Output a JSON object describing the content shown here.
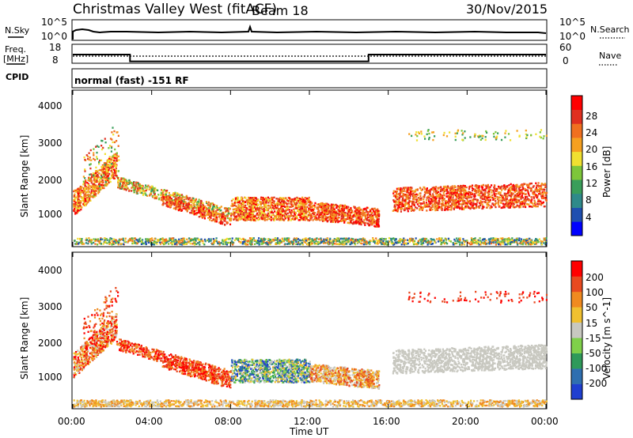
{
  "header": {
    "title": "Christmas Valley West (fitACF)",
    "beam": "Beam 18",
    "date": "30/Nov/2015"
  },
  "status_panel": {
    "nsky_label": "N.Sky",
    "nsearch_label": "N.Search",
    "freq_label_1": "Freq.",
    "freq_label_2": "[MHz]",
    "nave_label": "Nave",
    "cpid_label": "CPID",
    "cpid_text": "normal (fast) -151 RF",
    "nsky_ticks": [
      "10^5",
      "10^0"
    ],
    "nsearch_ticks": [
      "10^5",
      "10^0"
    ],
    "freq_ticks": [
      "18",
      "8"
    ],
    "nave_ticks": [
      "60",
      "0"
    ]
  },
  "chart_data": [
    {
      "type": "heatmap",
      "name": "power",
      "ylabel": "Slant Range [km]",
      "y_ticks": [
        "4000",
        "3000",
        "2000",
        "1000"
      ],
      "y_values": [
        4000,
        3000,
        2000,
        1000
      ],
      "ylim": [
        200,
        4500
      ],
      "xlim": [
        0,
        24
      ],
      "colorbar_label": "Power [dB]",
      "colorbar_ticks": [
        "28",
        "24",
        "20",
        "16",
        "12",
        "8",
        "4"
      ],
      "colorbar_colors": [
        "#0000ff",
        "#1f4fb0",
        "#2f8a8a",
        "#3a9e5a",
        "#7dc63a",
        "#f0e030",
        "#f5a020",
        "#f07020",
        "#e03020",
        "#ff0000"
      ]
    },
    {
      "type": "heatmap",
      "name": "velocity",
      "ylabel": "Slant Range [km]",
      "y_ticks": [
        "4000",
        "3000",
        "2000",
        "1000"
      ],
      "y_values": [
        4000,
        3000,
        2000,
        1000
      ],
      "ylim": [
        200,
        4500
      ],
      "xlim": [
        0,
        24
      ],
      "colorbar_label": "Velocity [m s^-1]",
      "colorbar_ticks": [
        "200",
        "100",
        "50",
        "15",
        "-15",
        "-50",
        "-100",
        "-200"
      ],
      "colorbar_colors": [
        "#1f3fd0",
        "#2f6fb0",
        "#2f9a5a",
        "#7fd04a",
        "#c8c8c0",
        "#f0c030",
        "#f08a20",
        "#e84a20",
        "#ff0000"
      ]
    }
  ],
  "xaxis": {
    "label": "Time UT",
    "ticks": [
      "00:00",
      "04:00",
      "08:00",
      "12:00",
      "16:00",
      "20:00",
      "00:00"
    ],
    "tick_hours": [
      0,
      4,
      8,
      12,
      16,
      20,
      24
    ]
  },
  "frequency_series": {
    "hours": [
      0,
      2.9,
      2.9,
      15.0,
      15.0,
      24
    ],
    "mhz": [
      13.5,
      13.5,
      9.2,
      9.2,
      13.5,
      13.5
    ]
  }
}
